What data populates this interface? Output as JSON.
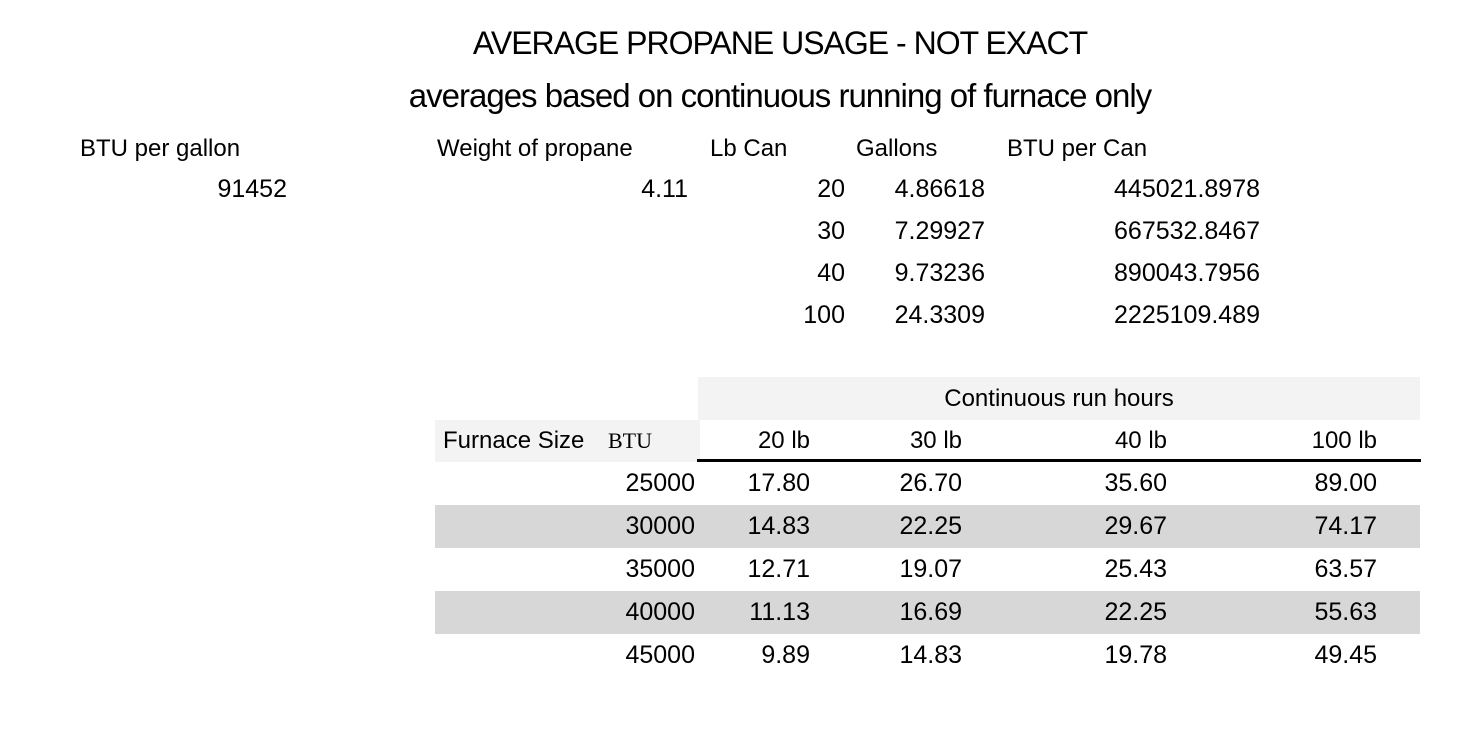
{
  "title": "AVERAGE PROPANE USAGE - NOT EXACT",
  "subtitle": "averages based on continuous running of furnace only",
  "colors": {
    "page_bg": "#ffffff",
    "text": "#000000",
    "header_band_bg": "#f3f3f3",
    "shaded_row_bg": "#d7d7d7",
    "rule": "#000000"
  },
  "conversion_table": {
    "headers": [
      "BTU per gallon",
      "Weight of propane",
      "Lb Can",
      "Gallons",
      "BTU per Can"
    ],
    "btu_per_gallon": "91452",
    "weight_of_propane": "4.11",
    "rows": [
      {
        "lb_can": "20",
        "gallons": "4.86618",
        "btu_per_can": "445021.8978"
      },
      {
        "lb_can": "30",
        "gallons": "7.29927",
        "btu_per_can": "667532.8467"
      },
      {
        "lb_can": "40",
        "gallons": "9.73236",
        "btu_per_can": "890043.7956"
      },
      {
        "lb_can": "100",
        "gallons": "24.3309",
        "btu_per_can": "2225109.489"
      }
    ]
  },
  "run_hours_table": {
    "band_label": "Continuous run hours",
    "furnace_size_label": "Furnace Size",
    "btu_label": "BTU",
    "col_headers": [
      "20 lb",
      "30 lb",
      "40 lb",
      "100 lb"
    ],
    "rows": [
      {
        "btu": "25000",
        "lb20": "17.80",
        "lb30": "26.70",
        "lb40": "35.60",
        "lb100": "89.00"
      },
      {
        "btu": "30000",
        "lb20": "14.83",
        "lb30": "22.25",
        "lb40": "29.67",
        "lb100": "74.17"
      },
      {
        "btu": "35000",
        "lb20": "12.71",
        "lb30": "19.07",
        "lb40": "25.43",
        "lb100": "63.57"
      },
      {
        "btu": "40000",
        "lb20": "11.13",
        "lb30": "16.69",
        "lb40": "22.25",
        "lb100": "55.63"
      },
      {
        "btu": "45000",
        "lb20": "9.89",
        "lb30": "14.83",
        "lb40": "19.78",
        "lb100": "49.45"
      }
    ]
  }
}
